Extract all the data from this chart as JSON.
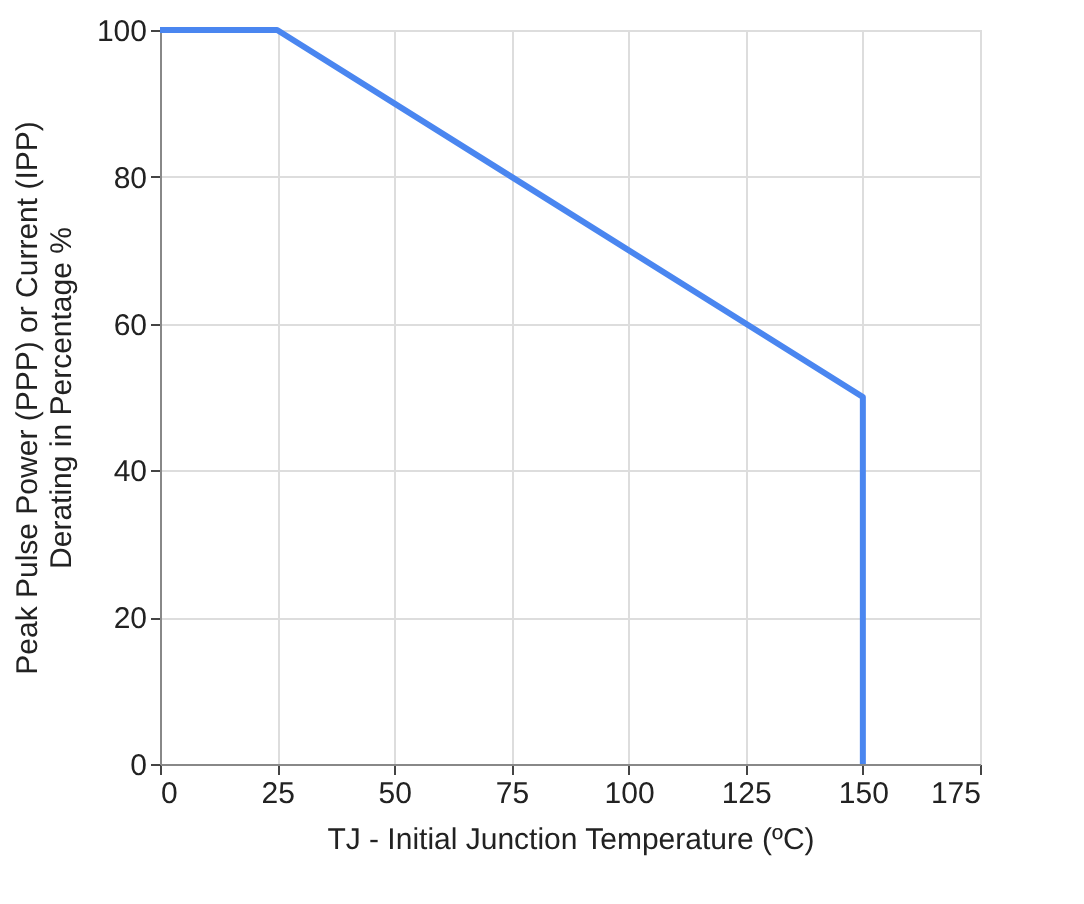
{
  "chart_data": {
    "type": "line",
    "xlabel": "TJ - Initial Junction Temperature (ºC)",
    "ylabel": "Peak Pulse Power (PPP) or Current (IPP)\nDerating in Percentage %",
    "x": [
      0,
      25,
      150,
      150
    ],
    "series": [
      {
        "color": "#4a86f0",
        "values": [
          100,
          100,
          50,
          0
        ]
      }
    ],
    "xlim": [
      0,
      175
    ],
    "xticks": [
      0,
      25,
      50,
      75,
      100,
      125,
      150,
      175
    ],
    "ylim": [
      0,
      100
    ],
    "yticks": [
      0,
      20,
      40,
      60,
      80,
      100
    ],
    "grid": true,
    "marker": "none",
    "line_style": "solid"
  }
}
